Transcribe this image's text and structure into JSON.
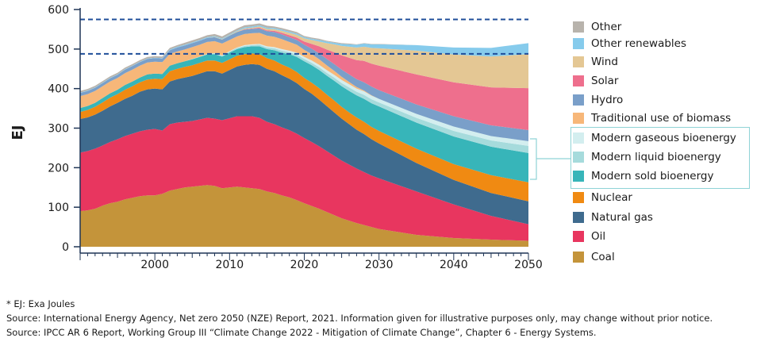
{
  "chart_data": {
    "type": "area",
    "stacked": true,
    "ylabel": "EJ",
    "xlabel": "",
    "title": "",
    "xlim": [
      1990,
      2050
    ],
    "ylim": [
      0,
      600
    ],
    "yticks": [
      0,
      100,
      200,
      300,
      400,
      500,
      600
    ],
    "xticks": [
      2000,
      2010,
      2020,
      2030,
      2040,
      2050
    ],
    "grid": false,
    "legend_position": "right",
    "reference_lines": [
      {
        "y": 575,
        "style": "dashed",
        "color": "#1f4e9a"
      },
      {
        "y": 488,
        "style": "dashed",
        "color": "#1f4e9a"
      }
    ],
    "x": [
      1990,
      1991,
      1992,
      1993,
      1994,
      1995,
      1996,
      1997,
      1998,
      1999,
      2000,
      2001,
      2002,
      2003,
      2004,
      2005,
      2006,
      2007,
      2008,
      2009,
      2010,
      2011,
      2012,
      2013,
      2014,
      2015,
      2016,
      2017,
      2018,
      2019,
      2020,
      2021,
      2022,
      2023,
      2024,
      2025,
      2026,
      2027,
      2028,
      2029,
      2030,
      2035,
      2040,
      2045,
      2050
    ],
    "series": [
      {
        "name": "Coal",
        "color": "#c4943a",
        "values": [
          90,
          92,
          96,
          104,
          110,
          114,
          120,
          124,
          128,
          130,
          130,
          134,
          142,
          146,
          150,
          152,
          154,
          156,
          154,
          148,
          150,
          152,
          150,
          148,
          146,
          140,
          136,
          130,
          125,
          118,
          110,
          103,
          96,
          88,
          80,
          72,
          66,
          60,
          55,
          50,
          45,
          30,
          22,
          18,
          15
        ]
      },
      {
        "name": "Oil",
        "color": "#e8365f",
        "values": [
          148,
          150,
          152,
          152,
          155,
          158,
          160,
          162,
          164,
          166,
          168,
          160,
          168,
          168,
          166,
          166,
          168,
          170,
          170,
          172,
          175,
          178,
          180,
          182,
          180,
          176,
          174,
          172,
          170,
          168,
          165,
          162,
          158,
          154,
          150,
          146,
          142,
          138,
          134,
          130,
          128,
          110,
          85,
          60,
          42
        ]
      },
      {
        "name": "Natural gas",
        "color": "#3f6b8e",
        "values": [
          85,
          85,
          86,
          88,
          90,
          92,
          94,
          96,
          100,
          102,
          102,
          104,
          108,
          110,
          112,
          114,
          116,
          118,
          120,
          118,
          122,
          126,
          130,
          132,
          134,
          134,
          134,
          132,
          130,
          128,
          124,
          122,
          118,
          114,
          110,
          106,
          102,
          98,
          96,
          92,
          88,
          72,
          62,
          58,
          58
        ]
      },
      {
        "name": "Nuclear",
        "color": "#f08a12",
        "values": [
          18,
          19,
          20,
          21,
          22,
          22,
          23,
          24,
          24,
          25,
          25,
          26,
          26,
          26,
          27,
          27,
          27,
          27,
          27,
          27,
          27,
          27,
          27,
          27,
          27,
          27,
          27,
          27,
          28,
          28,
          28,
          28,
          29,
          29,
          30,
          30,
          30,
          31,
          31,
          31,
          32,
          36,
          40,
          45,
          48
        ]
      },
      {
        "name": "Modern sold bioenergy",
        "color": "#37b5b9",
        "values": [
          10,
          10,
          10,
          11,
          11,
          11,
          12,
          12,
          12,
          13,
          13,
          13,
          14,
          14,
          14,
          15,
          15,
          15,
          16,
          16,
          17,
          17,
          18,
          18,
          20,
          23,
          26,
          30,
          34,
          38,
          42,
          44,
          46,
          48,
          50,
          52,
          54,
          56,
          58,
          60,
          62,
          66,
          70,
          72,
          74
        ]
      },
      {
        "name": "Modern liquid bioenergy",
        "color": "#a6dbdc",
        "values": [
          0,
          0,
          0,
          0,
          0,
          0,
          0,
          0,
          0,
          0,
          0,
          0,
          0,
          0,
          0,
          1,
          1,
          2,
          2,
          2,
          3,
          3,
          3,
          3,
          4,
          4,
          5,
          5,
          5,
          6,
          6,
          6,
          7,
          7,
          8,
          8,
          9,
          9,
          10,
          10,
          10,
          12,
          14,
          16,
          18
        ]
      },
      {
        "name": "Modern gaseous bioenergy",
        "color": "#d3eeef",
        "values": [
          0,
          0,
          0,
          0,
          0,
          0,
          0,
          0,
          0,
          0,
          0,
          0,
          0,
          0,
          0,
          0,
          0,
          0,
          1,
          1,
          1,
          1,
          2,
          2,
          2,
          3,
          3,
          4,
          4,
          5,
          5,
          6,
          6,
          7,
          7,
          8,
          8,
          8,
          9,
          9,
          9,
          10,
          11,
          11,
          12
        ]
      },
      {
        "name": "Traditional use of biomass",
        "color": "#f7b779",
        "values": [
          30,
          30,
          30,
          30,
          30,
          30,
          30,
          30,
          30,
          30,
          30,
          30,
          30,
          30,
          30,
          30,
          30,
          30,
          30,
          30,
          28,
          28,
          28,
          28,
          28,
          27,
          26,
          25,
          22,
          20,
          18,
          16,
          14,
          12,
          10,
          8,
          6,
          4,
          2,
          1,
          0,
          0,
          0,
          0,
          0
        ]
      },
      {
        "name": "Hydro",
        "color": "#7a9fc9",
        "values": [
          8,
          8,
          8,
          8,
          8,
          8,
          9,
          9,
          9,
          9,
          9,
          9,
          9,
          10,
          10,
          10,
          10,
          10,
          10,
          10,
          11,
          11,
          11,
          11,
          11,
          11,
          12,
          12,
          12,
          12,
          13,
          14,
          15,
          16,
          17,
          18,
          19,
          20,
          21,
          22,
          22,
          24,
          26,
          27,
          28
        ]
      },
      {
        "name": "Solar",
        "color": "#ee6f8d",
        "values": [
          0,
          0,
          0,
          0,
          0,
          0,
          0,
          0,
          0,
          0,
          0,
          0,
          0,
          0,
          0,
          0,
          0,
          0,
          0,
          0,
          0,
          0,
          1,
          1,
          2,
          2,
          3,
          4,
          5,
          6,
          8,
          12,
          18,
          24,
          30,
          36,
          42,
          48,
          54,
          58,
          62,
          76,
          86,
          96,
          106
        ]
      },
      {
        "name": "Wind",
        "color": "#e4c794",
        "values": [
          0,
          0,
          0,
          0,
          0,
          0,
          0,
          0,
          0,
          0,
          0,
          0,
          0,
          0,
          0,
          0,
          0,
          0,
          1,
          1,
          1,
          2,
          2,
          2,
          3,
          4,
          4,
          5,
          6,
          7,
          8,
          10,
          12,
          16,
          20,
          24,
          28,
          32,
          36,
          40,
          44,
          60,
          70,
          78,
          86
        ]
      },
      {
        "name": "Other renewables",
        "color": "#86cbec",
        "values": [
          1,
          1,
          1,
          1,
          1,
          1,
          1,
          1,
          1,
          1,
          1,
          1,
          2,
          2,
          2,
          2,
          2,
          2,
          2,
          2,
          2,
          2,
          3,
          3,
          3,
          3,
          3,
          3,
          3,
          3,
          3,
          3,
          4,
          4,
          4,
          5,
          6,
          7,
          8,
          9,
          10,
          14,
          18,
          22,
          28
        ]
      },
      {
        "name": "Other",
        "color": "#b8b3ac",
        "values": [
          4,
          4,
          4,
          4,
          4,
          4,
          4,
          4,
          4,
          4,
          4,
          4,
          4,
          4,
          5,
          5,
          5,
          5,
          5,
          5,
          5,
          5,
          5,
          5,
          5,
          5,
          4,
          4,
          4,
          4,
          3,
          3,
          3,
          2,
          2,
          2,
          2,
          1,
          1,
          1,
          1,
          0,
          0,
          0,
          0
        ]
      }
    ]
  },
  "legend": [
    {
      "label": "Other",
      "color": "#b8b3ac"
    },
    {
      "label": "Other renewables",
      "color": "#86cbec"
    },
    {
      "label": "Wind",
      "color": "#e4c794"
    },
    {
      "label": "Solar",
      "color": "#ee6f8d"
    },
    {
      "label": "Hydro",
      "color": "#7a9fc9"
    },
    {
      "label": "Traditional use of biomass",
      "color": "#f7b779"
    },
    {
      "label": "Modern gaseous bioenergy",
      "color": "#d3eeef"
    },
    {
      "label": "Modern liquid bioenergy",
      "color": "#a6dbdc"
    },
    {
      "label": "Modern sold bioenergy",
      "color": "#37b5b9"
    },
    {
      "label": "Nuclear",
      "color": "#f08a12"
    },
    {
      "label": "Natural gas",
      "color": "#3f6b8e"
    },
    {
      "label": "Oil",
      "color": "#e8365f"
    },
    {
      "label": "Coal",
      "color": "#c4943a"
    }
  ],
  "notes": {
    "unit_note": "* EJ: Exa Joules",
    "source_1": "Source: International Energy Agency, Net zero 2050 (NZE) Report, 2021. Information given for illustrative purposes only, may change without prior notice.",
    "source_2": "Source: IPCC AR 6 Report, Working Group III “Climate Change 2022 - Mitigation of Climate Change”, Chapter 6 - Energy Systems."
  },
  "colors": {
    "axis": "#1f3556",
    "reference_line": "#1f4e9a",
    "bio_bracket": "#8fd3d6"
  }
}
